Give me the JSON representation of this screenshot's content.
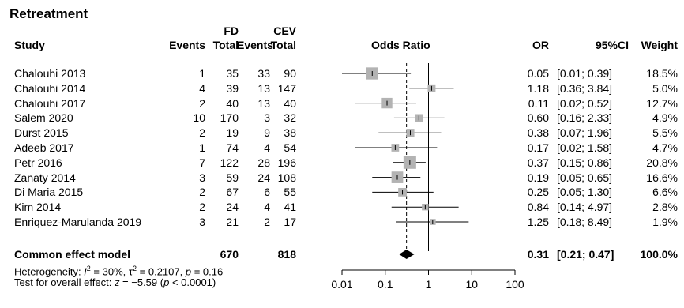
{
  "chart_data": {
    "type": "forest",
    "title": "Retreatment",
    "group_headers": {
      "fd": "FD",
      "cev": "CEV"
    },
    "columns": {
      "study": "Study",
      "events1": "Events",
      "total1": "Total",
      "events2": "Events",
      "total2": "Total",
      "plot": "Odds Ratio",
      "or": "OR",
      "ci": "95%CI",
      "weight": "Weight"
    },
    "x_scale": "log",
    "xlim": [
      0.01,
      100
    ],
    "x_ticks": [
      "0.01",
      "0.1",
      "1",
      "10",
      "100"
    ],
    "reference_line": 1,
    "pooled_line": 0.31,
    "studies": [
      {
        "name": "Chalouhi 2013",
        "events1": "1",
        "total1": "35",
        "events2": "33",
        "total2": "90",
        "or": 0.05,
        "lo": 0.01,
        "hi": 0.39,
        "weight": 18.5,
        "or_text": "0.05",
        "ci_text": "[0.01; 0.39]",
        "weight_text": "18.5%"
      },
      {
        "name": "Chalouhi 2014",
        "events1": "4",
        "total1": "39",
        "events2": "13",
        "total2": "147",
        "or": 1.18,
        "lo": 0.36,
        "hi": 3.84,
        "weight": 5.0,
        "or_text": "1.18",
        "ci_text": "[0.36; 3.84]",
        "weight_text": "5.0%"
      },
      {
        "name": "Chalouhi 2017",
        "events1": "2",
        "total1": "40",
        "events2": "13",
        "total2": "40",
        "or": 0.11,
        "lo": 0.02,
        "hi": 0.52,
        "weight": 12.7,
        "or_text": "0.11",
        "ci_text": "[0.02; 0.52]",
        "weight_text": "12.7%"
      },
      {
        "name": "Salem 2020",
        "events1": "10",
        "total1": "170",
        "events2": "3",
        "total2": "32",
        "or": 0.6,
        "lo": 0.16,
        "hi": 2.33,
        "weight": 4.9,
        "or_text": "0.60",
        "ci_text": "[0.16; 2.33]",
        "weight_text": "4.9%"
      },
      {
        "name": "Durst 2015",
        "events1": "2",
        "total1": "19",
        "events2": "9",
        "total2": "38",
        "or": 0.38,
        "lo": 0.07,
        "hi": 1.96,
        "weight": 5.5,
        "or_text": "0.38",
        "ci_text": "[0.07; 1.96]",
        "weight_text": "5.5%"
      },
      {
        "name": "Adeeb 2017",
        "events1": "1",
        "total1": "74",
        "events2": "4",
        "total2": "54",
        "or": 0.17,
        "lo": 0.02,
        "hi": 1.58,
        "weight": 4.7,
        "or_text": "0.17",
        "ci_text": "[0.02; 1.58]",
        "weight_text": "4.7%"
      },
      {
        "name": "Petr 2016",
        "events1": "7",
        "total1": "122",
        "events2": "28",
        "total2": "196",
        "or": 0.37,
        "lo": 0.15,
        "hi": 0.86,
        "weight": 20.8,
        "or_text": "0.37",
        "ci_text": "[0.15; 0.86]",
        "weight_text": "20.8%"
      },
      {
        "name": "Zanaty 2014",
        "events1": "3",
        "total1": "59",
        "events2": "24",
        "total2": "108",
        "or": 0.19,
        "lo": 0.05,
        "hi": 0.65,
        "weight": 16.6,
        "or_text": "0.19",
        "ci_text": "[0.05; 0.65]",
        "weight_text": "16.6%"
      },
      {
        "name": "Di Maria 2015",
        "events1": "2",
        "total1": "67",
        "events2": "6",
        "total2": "55",
        "or": 0.25,
        "lo": 0.05,
        "hi": 1.3,
        "weight": 6.6,
        "or_text": "0.25",
        "ci_text": "[0.05; 1.30]",
        "weight_text": "6.6%"
      },
      {
        "name": "Kim 2014",
        "events1": "2",
        "total1": "24",
        "events2": "4",
        "total2": "41",
        "or": 0.84,
        "lo": 0.14,
        "hi": 4.97,
        "weight": 2.8,
        "or_text": "0.84",
        "ci_text": "[0.14; 4.97]",
        "weight_text": "2.8%"
      },
      {
        "name": "Enriquez-Marulanda 2019",
        "events1": "3",
        "total1": "21",
        "events2": "2",
        "total2": "17",
        "or": 1.25,
        "lo": 0.18,
        "hi": 8.49,
        "weight": 1.9,
        "or_text": "1.25",
        "ci_text": "[0.18; 8.49]",
        "weight_text": "1.9%"
      }
    ],
    "pooled": {
      "name": "Common effect model",
      "total1": "670",
      "total2": "818",
      "or": 0.31,
      "lo": 0.21,
      "hi": 0.47,
      "or_text": "0.31",
      "ci_text": "[0.21; 0.47]",
      "weight_text": "100.0%"
    },
    "heterogeneity": {
      "prefix": "Heterogeneity: ",
      "i2_symbol": "I",
      "i2_sup": "2",
      "i2_value": " = 30%, ",
      "tau_symbol": "τ",
      "tau_sup": "2",
      "tau_value": " = 0.2107, ",
      "p_symbol": "p",
      "p_value": " = 0.16"
    },
    "overall_effect": {
      "prefix": "Test for overall effect: ",
      "z_symbol": "z",
      "z_value": " = −5.59 (",
      "p_symbol": "p",
      "p_value": " < 0.0001)"
    },
    "colors": {
      "square": "#b3b3b3",
      "line": "#000000"
    }
  }
}
